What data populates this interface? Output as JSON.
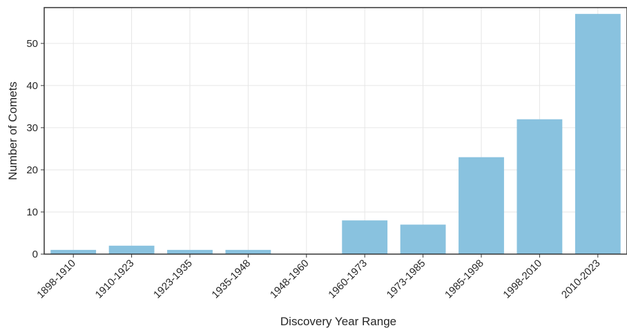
{
  "chart_data": {
    "type": "bar",
    "title": "",
    "xlabel": "Discovery Year Range",
    "ylabel": "Number of Comets",
    "categories": [
      "1898-1910",
      "1910-1923",
      "1923-1935",
      "1935-1948",
      "1948-1960",
      "1960-1973",
      "1973-1985",
      "1985-1998",
      "1998-2010",
      "2010-2023"
    ],
    "values": [
      1,
      2,
      1,
      1,
      0,
      8,
      7,
      23,
      32,
      57
    ],
    "ylim": [
      0,
      58.5
    ],
    "yticks": [
      0,
      10,
      20,
      30,
      40,
      50
    ],
    "grid": true,
    "bar_color": "#89c2df",
    "grid_color": "#e6e6e6",
    "axis_color": "#333333"
  }
}
